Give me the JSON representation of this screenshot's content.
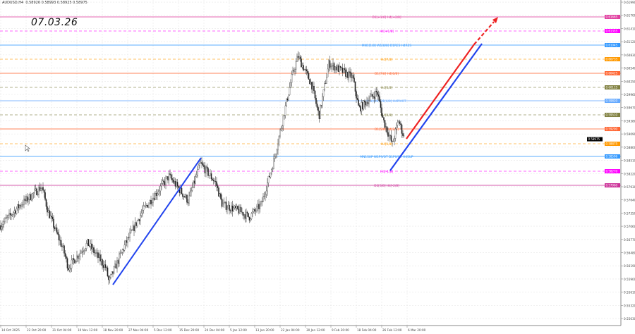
{
  "header": {
    "symbol": "AUDUSD,H4",
    "ohlc": "0.58926 0.58993 0.58925 0.58975"
  },
  "annotation_text": "07.03.26",
  "chart_data": {
    "type": "candlestick",
    "title": "AUDUSD,H4",
    "grid": true,
    "ylim": [
      0.54876,
      0.62037
    ],
    "y_ticks": [
      "0.61990",
      "0.61700",
      "0.61410",
      "0.61120",
      "0.60830",
      "0.60540",
      "0.60250",
      "0.59960",
      "0.59670",
      "0.59380",
      "0.59090",
      "0.58800",
      "0.58510",
      "0.58220",
      "0.57930",
      "0.57640",
      "0.57350",
      "0.57060",
      "0.56770",
      "0.56480",
      "0.56190",
      "0.55900",
      "0.55610",
      "0.55320",
      "0.55030"
    ],
    "x_ticks": [
      "14 Oct 2025",
      "22 Oct 20:00",
      "31 Oct 04:00",
      "10 Nov 12:00",
      "18 Nov 20:00",
      "27 Nov 04:00",
      "5 Dec 12:00",
      "15 Dec 20:00",
      "24 Dec 04:00",
      "5 Jan 12:00",
      "13 Jan 20:00",
      "22 Jan 04:00",
      "30 Jan 12:00",
      "9 Feb 20:00",
      "18 Feb 04:00",
      "26 Feb 12:00",
      "6 Mar 20:00"
    ],
    "current_price": {
      "value": 0.58975,
      "label": "0.58975",
      "color": "#000000"
    },
    "price_path": [
      [
        "2025-10-14",
        0.5708
      ],
      [
        "2025-10-21",
        0.5754
      ],
      [
        "2025-10-28",
        0.5793
      ],
      [
        "2025-10-30",
        0.5739
      ],
      [
        "2025-11-05",
        0.5654
      ],
      [
        "2025-11-07",
        0.5615
      ],
      [
        "2025-11-14",
        0.5669
      ],
      [
        "2025-11-20",
        0.5615
      ],
      [
        "2025-11-21",
        0.5584
      ],
      [
        "2025-11-26",
        0.5661
      ],
      [
        "2025-12-02",
        0.5739
      ],
      [
        "2025-12-12",
        0.5816
      ],
      [
        "2025-12-19",
        0.5762
      ],
      [
        "2025-12-23",
        0.5844
      ],
      [
        "2025-12-30",
        0.5801
      ],
      [
        "2026-01-02",
        0.5754
      ],
      [
        "2026-01-09",
        0.5739
      ],
      [
        "2026-01-12",
        0.5726
      ],
      [
        "2026-01-16",
        0.5754
      ],
      [
        "2026-01-20",
        0.5847
      ],
      [
        "2026-01-22",
        0.5909
      ],
      [
        "2026-01-26",
        0.6033
      ],
      [
        "2026-01-28",
        0.608
      ],
      [
        "2026-02-02",
        0.6018
      ],
      [
        "2026-02-05",
        0.5948
      ],
      [
        "2026-02-09",
        0.6064
      ],
      [
        "2026-02-13",
        0.6049
      ],
      [
        "2026-02-17",
        0.6033
      ],
      [
        "2026-02-19",
        0.5964
      ],
      [
        "2026-02-25",
        0.6002
      ],
      [
        "2026-02-27",
        0.594
      ],
      [
        "2026-03-02",
        0.5886
      ],
      [
        "2026-03-04",
        0.594
      ],
      [
        "2026-03-06",
        0.58975
      ]
    ],
    "levels": [
      {
        "price": 0.61665,
        "text": "D1[+1/8] H4[+2/8]",
        "tag": "0.61665",
        "color": "#e040a0",
        "dash": false
      },
      {
        "price": 0.61355,
        "text": "H4[+1/8]",
        "tag": "0.61355",
        "color": "#ff00ff",
        "dash": true
      },
      {
        "price": 0.61045,
        "text": "MN1[1/8] W1[8/8] D1RES H4RES",
        "tag": "0.61045",
        "color": "#3399ff",
        "dash": false
      },
      {
        "price": 0.60735,
        "text": "H4[7/8]",
        "tag": "0.60735",
        "color": "#ff9900",
        "dash": true
      },
      {
        "price": 0.60425,
        "text": "D1[7/8] H4[6/8]",
        "tag": "0.60425",
        "color": "#ff6633",
        "dash": false
      },
      {
        "price": 0.60115,
        "text": "H4[5/8]",
        "tag": "0.60115",
        "color": "#808040",
        "dash": true
      },
      {
        "price": 0.5982,
        "text": "W1[6/8] D1[6/8] H4PIVOT",
        "tag": "0.59820",
        "color": "#66aaff",
        "dash": false
      },
      {
        "price": 0.5951,
        "text": "H4[3/8]",
        "tag": "0.59510",
        "color": "#808040",
        "dash": true
      },
      {
        "price": 0.592,
        "text": "D1[5/8] H4[2/8]",
        "tag": "0.59200",
        "color": "#ff6633",
        "dash": false
      },
      {
        "price": 0.58875,
        "text": "H4[1/8]",
        "tag": "0.58875",
        "color": "#ff9900",
        "dash": true
      },
      {
        "price": 0.58596,
        "text": "MN1SUP W1PIVOT D1PIVOT H4SUP",
        "tag": "0.58596",
        "color": "#3399ff",
        "dash": false
      },
      {
        "price": 0.5827,
        "text": "H4[-1/8]",
        "tag": "0.58270",
        "color": "#ff00ff",
        "dash": true
      },
      {
        "price": 0.5796,
        "text": "D1[3/8] H4[-2/8]",
        "tag": "0.57960",
        "color": "#cc3399",
        "dash": false
      }
    ],
    "trendline_color": "#2244ee",
    "forecast_color": "#ee2222"
  }
}
